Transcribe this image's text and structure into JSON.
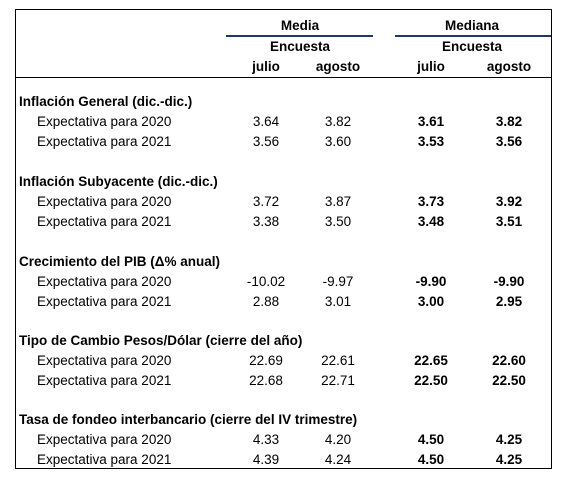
{
  "header": {
    "media": "Media",
    "mediana": "Mediana",
    "encuesta": "Encuesta",
    "months": [
      "julio",
      "agosto"
    ]
  },
  "sections": [
    {
      "title": "Inflación General (dic.-dic.)",
      "rows": [
        {
          "label": "Expectativa para 2020",
          "media": [
            "3.64",
            "3.82"
          ],
          "mediana": [
            "3.61",
            "3.82"
          ]
        },
        {
          "label": "Expectativa para 2021",
          "media": [
            "3.56",
            "3.60"
          ],
          "mediana": [
            "3.53",
            "3.56"
          ]
        }
      ]
    },
    {
      "title": "Inflación Subyacente (dic.-dic.)",
      "rows": [
        {
          "label": "Expectativa para 2020",
          "media": [
            "3.72",
            "3.87"
          ],
          "mediana": [
            "3.73",
            "3.92"
          ]
        },
        {
          "label": "Expectativa para 2021",
          "media": [
            "3.38",
            "3.50"
          ],
          "mediana": [
            "3.48",
            "3.51"
          ]
        }
      ]
    },
    {
      "title": "Crecimiento del PIB (Δ% anual)",
      "rows": [
        {
          "label": "Expectativa para 2020",
          "media": [
            "-10.02",
            "-9.97"
          ],
          "mediana": [
            "-9.90",
            "-9.90"
          ]
        },
        {
          "label": "Expectativa para 2021",
          "media": [
            "2.88",
            "3.01"
          ],
          "mediana": [
            "3.00",
            "2.95"
          ]
        }
      ]
    },
    {
      "title": "Tipo de Cambio Pesos/Dólar (cierre del año)",
      "rows": [
        {
          "label": "Expectativa para 2020",
          "media": [
            "22.69",
            "22.61"
          ],
          "mediana": [
            "22.65",
            "22.60"
          ]
        },
        {
          "label": "Expectativa para 2021",
          "media": [
            "22.68",
            "22.71"
          ],
          "mediana": [
            "22.50",
            "22.50"
          ]
        }
      ]
    },
    {
      "title": "Tasa de fondeo interbancario (cierre del IV trimestre)",
      "rows": [
        {
          "label": "Expectativa para 2020",
          "media": [
            "4.33",
            "4.20"
          ],
          "mediana": [
            "4.50",
            "4.25"
          ]
        },
        {
          "label": "Expectativa para 2021",
          "media": [
            "4.39",
            "4.24"
          ],
          "mediana": [
            "4.50",
            "4.25"
          ]
        }
      ]
    }
  ]
}
